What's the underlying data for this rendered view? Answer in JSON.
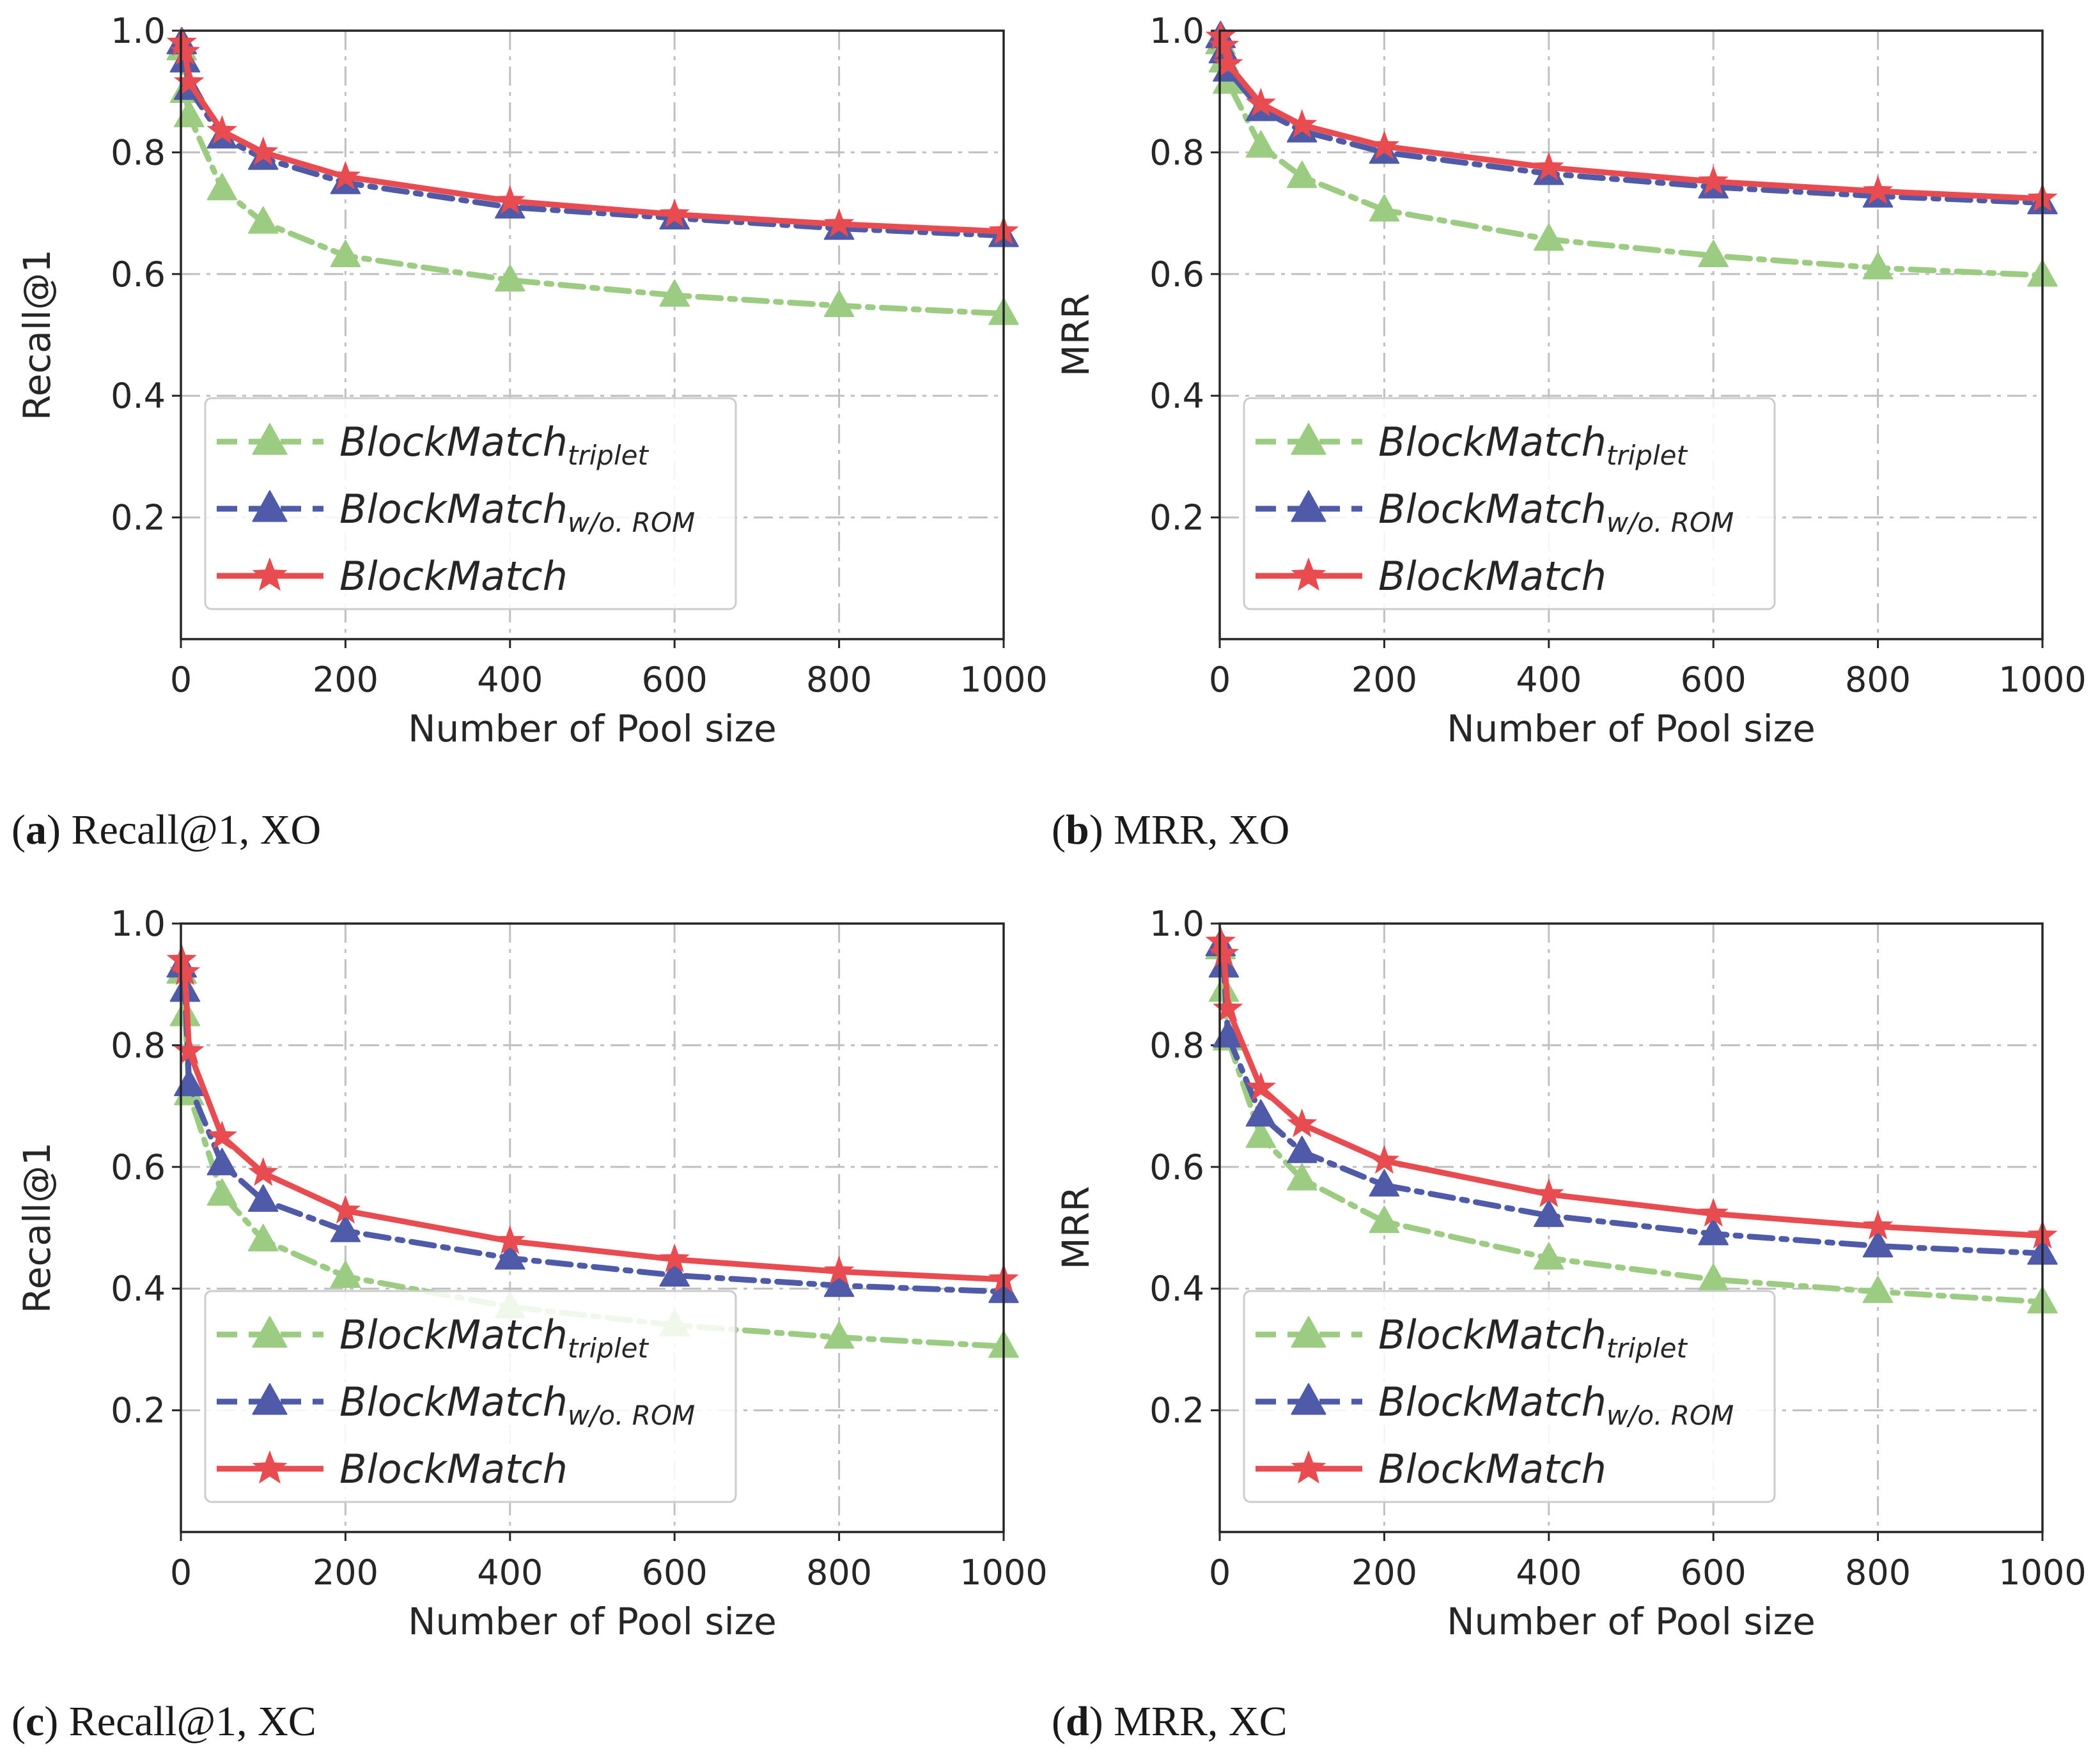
{
  "colors": {
    "triplet": "#9ccc82",
    "wo_rom": "#4f5aa8",
    "blockmatch": "#e84b50",
    "grid": "#c0c0c0",
    "axis": "#262626"
  },
  "legend": [
    {
      "key": "triplet",
      "base": "BlockMatch",
      "sub": "triplet",
      "dash": "dashdot",
      "marker": "triangle"
    },
    {
      "key": "wo_rom",
      "base": "BlockMatch",
      "sub": "w/o. ROM",
      "dash": "dashdot",
      "marker": "triangle"
    },
    {
      "key": "blockmatch",
      "base": "BlockMatch",
      "sub": "",
      "dash": "solid",
      "marker": "star"
    }
  ],
  "chart_data": [
    {
      "type": "line",
      "caption_letter": "a",
      "caption_text": "Recall@1, XO",
      "xlabel": "Number of Pool size",
      "ylabel": "Recall@1",
      "xlim": [
        0,
        1000
      ],
      "ylim": [
        0,
        1.0
      ],
      "xticks": [
        0,
        200,
        400,
        600,
        800,
        1000
      ],
      "yticks": [
        0.2,
        0.4,
        0.6,
        0.8,
        1.0
      ],
      "grid": true,
      "legend_position": "lower-left",
      "x": [
        1,
        5,
        10,
        50,
        100,
        200,
        400,
        600,
        800,
        1000
      ],
      "series": [
        {
          "name": "BlockMatch_triplet",
          "key": "triplet",
          "values": [
            0.97,
            0.9,
            0.86,
            0.74,
            0.685,
            0.63,
            0.59,
            0.565,
            0.548,
            0.535
          ]
        },
        {
          "name": "BlockMatch_w/o. ROM",
          "key": "wo_rom",
          "values": [
            0.98,
            0.95,
            0.905,
            0.825,
            0.79,
            0.75,
            0.71,
            0.692,
            0.675,
            0.663
          ]
        },
        {
          "name": "BlockMatch",
          "key": "blockmatch",
          "values": [
            0.98,
            0.965,
            0.915,
            0.835,
            0.8,
            0.76,
            0.72,
            0.698,
            0.682,
            0.67
          ]
        }
      ]
    },
    {
      "type": "line",
      "caption_letter": "b",
      "caption_text": "MRR, XO",
      "xlabel": "Number of Pool size",
      "ylabel": "MRR",
      "xlim": [
        0,
        1000
      ],
      "ylim": [
        0,
        1.0
      ],
      "xticks": [
        0,
        200,
        400,
        600,
        800,
        1000
      ],
      "yticks": [
        0.2,
        0.4,
        0.6,
        0.8,
        1.0
      ],
      "grid": true,
      "legend_position": "lower-left",
      "x": [
        1,
        5,
        10,
        50,
        100,
        200,
        400,
        600,
        800,
        1000
      ],
      "series": [
        {
          "name": "BlockMatch_triplet",
          "key": "triplet",
          "values": [
            0.98,
            0.95,
            0.915,
            0.81,
            0.76,
            0.705,
            0.657,
            0.63,
            0.61,
            0.598
          ]
        },
        {
          "name": "BlockMatch_w/o. ROM",
          "key": "wo_rom",
          "values": [
            0.99,
            0.965,
            0.935,
            0.87,
            0.835,
            0.8,
            0.765,
            0.743,
            0.728,
            0.717
          ]
        },
        {
          "name": "BlockMatch",
          "key": "blockmatch",
          "values": [
            0.99,
            0.975,
            0.945,
            0.88,
            0.845,
            0.81,
            0.775,
            0.752,
            0.736,
            0.724
          ]
        }
      ]
    },
    {
      "type": "line",
      "caption_letter": "c",
      "caption_text": "Recall@1, XC",
      "xlabel": "Number of Pool size",
      "ylabel": "Recall@1",
      "xlim": [
        0,
        1000
      ],
      "ylim": [
        0,
        1.0
      ],
      "xticks": [
        0,
        200,
        400,
        600,
        800,
        1000
      ],
      "yticks": [
        0.2,
        0.4,
        0.6,
        0.8,
        1.0
      ],
      "grid": true,
      "legend_position": "lower-left",
      "x": [
        1,
        5,
        10,
        50,
        100,
        200,
        400,
        600,
        800,
        1000
      ],
      "series": [
        {
          "name": "BlockMatch_triplet",
          "key": "triplet",
          "values": [
            0.92,
            0.85,
            0.72,
            0.555,
            0.48,
            0.42,
            0.37,
            0.34,
            0.32,
            0.305
          ]
        },
        {
          "name": "BlockMatch_w/o. ROM",
          "key": "wo_rom",
          "values": [
            0.93,
            0.89,
            0.735,
            0.605,
            0.545,
            0.495,
            0.45,
            0.422,
            0.405,
            0.395
          ]
        },
        {
          "name": "BlockMatch",
          "key": "blockmatch",
          "values": [
            0.94,
            0.92,
            0.79,
            0.65,
            0.59,
            0.528,
            0.478,
            0.448,
            0.428,
            0.415
          ]
        }
      ]
    },
    {
      "type": "line",
      "caption_letter": "d",
      "caption_text": "MRR, XC",
      "xlabel": "Number of Pool size",
      "ylabel": "MRR",
      "xlim": [
        0,
        1000
      ],
      "ylim": [
        0,
        1.0
      ],
      "xticks": [
        0,
        200,
        400,
        600,
        800,
        1000
      ],
      "yticks": [
        0.2,
        0.4,
        0.6,
        0.8,
        1.0
      ],
      "grid": true,
      "legend_position": "lower-left",
      "x": [
        1,
        5,
        10,
        50,
        100,
        200,
        400,
        600,
        800,
        1000
      ],
      "series": [
        {
          "name": "BlockMatch_triplet",
          "key": "triplet",
          "values": [
            0.96,
            0.89,
            0.81,
            0.65,
            0.58,
            0.51,
            0.45,
            0.415,
            0.395,
            0.378
          ]
        },
        {
          "name": "BlockMatch_w/o. ROM",
          "key": "wo_rom",
          "values": [
            0.965,
            0.93,
            0.815,
            0.685,
            0.625,
            0.57,
            0.52,
            0.49,
            0.47,
            0.458
          ]
        },
        {
          "name": "BlockMatch",
          "key": "blockmatch",
          "values": [
            0.97,
            0.95,
            0.86,
            0.73,
            0.67,
            0.61,
            0.555,
            0.523,
            0.502,
            0.487
          ]
        }
      ]
    }
  ]
}
